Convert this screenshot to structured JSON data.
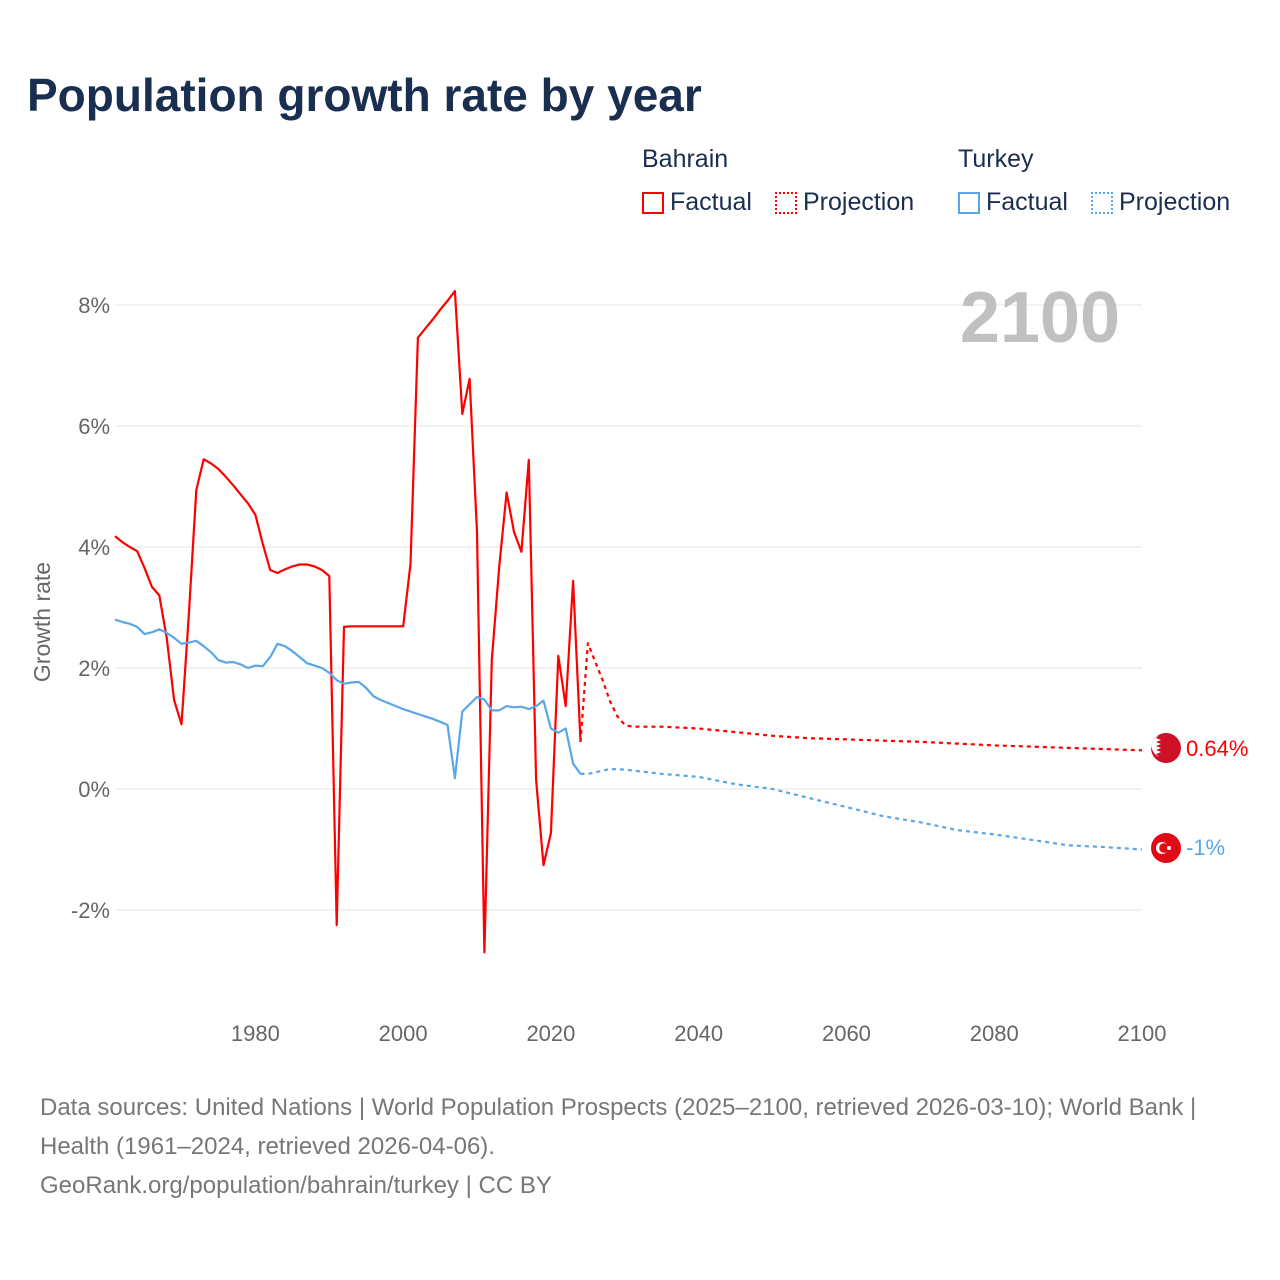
{
  "title": "Population growth rate by year",
  "legend": {
    "groups": [
      {
        "name": "Bahrain",
        "factual": "Factual",
        "projection": "Projection",
        "color": "#ff0000"
      },
      {
        "name": "Turkey",
        "factual": "Factual",
        "projection": "Projection",
        "color": "#5aa6e8"
      }
    ]
  },
  "year_label": "2100",
  "end_labels": {
    "bahrain": "0.64%",
    "turkey": "-1%"
  },
  "footer": {
    "sources": "Data sources: United Nations | World Population Prospects (2025–2100, retrieved 2026-03-10); World Bank | Health (1961–2024, retrieved 2026-04-06).",
    "credit": "GeoRank.org/population/bahrain/turkey | CC BY"
  },
  "chart_data": {
    "type": "line",
    "title": "Population growth rate by year",
    "xlabel": "",
    "ylabel": "Growth rate",
    "xlim": [
      1961,
      2100
    ],
    "ylim": [
      -3,
      8.5
    ],
    "x_ticks": [
      "1980",
      "2000",
      "2020",
      "2040",
      "2060",
      "2080",
      "2100"
    ],
    "y_ticks": [
      "-2%",
      "0%",
      "2%",
      "4%",
      "6%",
      "8%"
    ],
    "grid": true,
    "legend_position": "top-right",
    "series": [
      {
        "name": "Bahrain Factual",
        "color": "#ff0000",
        "dash": false,
        "x": [
          1961,
          1962,
          1963,
          1964,
          1965,
          1966,
          1967,
          1968,
          1969,
          1970,
          1971,
          1972,
          1973,
          1974,
          1975,
          1976,
          1977,
          1978,
          1979,
          1980,
          1981,
          1982,
          1983,
          1984,
          1985,
          1986,
          1987,
          1988,
          1989,
          1990,
          1991,
          1992,
          1993,
          1994,
          1995,
          1996,
          1997,
          1998,
          1999,
          2000,
          2001,
          2002,
          2003,
          2004,
          2005,
          2006,
          2007,
          2008,
          2009,
          2010,
          2011,
          2012,
          2013,
          2014,
          2015,
          2016,
          2017,
          2018,
          2019,
          2020,
          2021,
          2022,
          2023,
          2024
        ],
        "values": [
          4.18,
          4.08,
          4.0,
          3.93,
          3.65,
          3.34,
          3.2,
          2.5,
          1.47,
          1.07,
          2.9,
          4.94,
          5.45,
          5.38,
          5.29,
          5.16,
          5.02,
          4.87,
          4.72,
          4.53,
          4.05,
          3.62,
          3.57,
          3.63,
          3.68,
          3.71,
          3.71,
          3.68,
          3.62,
          3.52,
          -2.25,
          2.68,
          2.69,
          2.69,
          2.69,
          2.69,
          2.69,
          2.69,
          2.69,
          2.69,
          3.72,
          7.46,
          7.61,
          7.76,
          7.92,
          8.07,
          8.23,
          6.2,
          6.78,
          4.25,
          -2.7,
          2.13,
          3.67,
          4.9,
          4.25,
          3.92,
          5.44,
          0.15,
          -1.26,
          -0.73,
          2.2,
          1.37,
          3.44,
          0.78
        ]
      },
      {
        "name": "Bahrain Projection",
        "color": "#ff0000",
        "dash": true,
        "x": [
          2024,
          2025,
          2026,
          2027,
          2028,
          2029,
          2030,
          2031,
          2035,
          2040,
          2045,
          2050,
          2055,
          2060,
          2065,
          2070,
          2075,
          2080,
          2085,
          2090,
          2095,
          2100
        ],
        "values": [
          0.78,
          2.41,
          2.1,
          1.8,
          1.45,
          1.2,
          1.06,
          1.03,
          1.03,
          1.0,
          0.94,
          0.88,
          0.84,
          0.82,
          0.8,
          0.78,
          0.75,
          0.72,
          0.7,
          0.68,
          0.66,
          0.64
        ]
      },
      {
        "name": "Turkey Factual",
        "color": "#5aa6e8",
        "dash": false,
        "x": [
          1961,
          1962,
          1963,
          1964,
          1965,
          1966,
          1967,
          1968,
          1969,
          1970,
          1971,
          1972,
          1973,
          1974,
          1975,
          1976,
          1977,
          1978,
          1979,
          1980,
          1981,
          1982,
          1983,
          1984,
          1985,
          1986,
          1987,
          1988,
          1989,
          1990,
          1991,
          1992,
          1993,
          1994,
          1995,
          1996,
          1997,
          1998,
          1999,
          2000,
          2001,
          2002,
          2003,
          2004,
          2005,
          2006,
          2007,
          2008,
          2009,
          2010,
          2011,
          2012,
          2013,
          2014,
          2015,
          2016,
          2017,
          2018,
          2019,
          2020,
          2021,
          2022,
          2023,
          2024
        ],
        "values": [
          2.8,
          2.76,
          2.73,
          2.68,
          2.56,
          2.59,
          2.64,
          2.58,
          2.5,
          2.4,
          2.42,
          2.45,
          2.36,
          2.26,
          2.13,
          2.09,
          2.1,
          2.06,
          2.0,
          2.04,
          2.03,
          2.18,
          2.4,
          2.36,
          2.28,
          2.18,
          2.08,
          2.04,
          2.0,
          1.92,
          1.8,
          1.74,
          1.76,
          1.77,
          1.67,
          1.53,
          1.47,
          1.42,
          1.37,
          1.32,
          1.28,
          1.24,
          1.2,
          1.16,
          1.11,
          1.06,
          0.18,
          1.28,
          1.4,
          1.52,
          1.48,
          1.3,
          1.3,
          1.37,
          1.35,
          1.36,
          1.32,
          1.37,
          1.46,
          1.0,
          0.93,
          1.0,
          0.42,
          0.25
        ]
      },
      {
        "name": "Turkey Projection",
        "color": "#5aa6e8",
        "dash": true,
        "x": [
          2024,
          2025,
          2028,
          2030,
          2035,
          2040,
          2045,
          2050,
          2055,
          2060,
          2065,
          2070,
          2075,
          2080,
          2085,
          2090,
          2095,
          2100
        ],
        "values": [
          0.25,
          0.25,
          0.33,
          0.32,
          0.25,
          0.2,
          0.08,
          0.0,
          -0.15,
          -0.3,
          -0.45,
          -0.55,
          -0.68,
          -0.75,
          -0.84,
          -0.93,
          -0.96,
          -1.0
        ]
      }
    ]
  }
}
